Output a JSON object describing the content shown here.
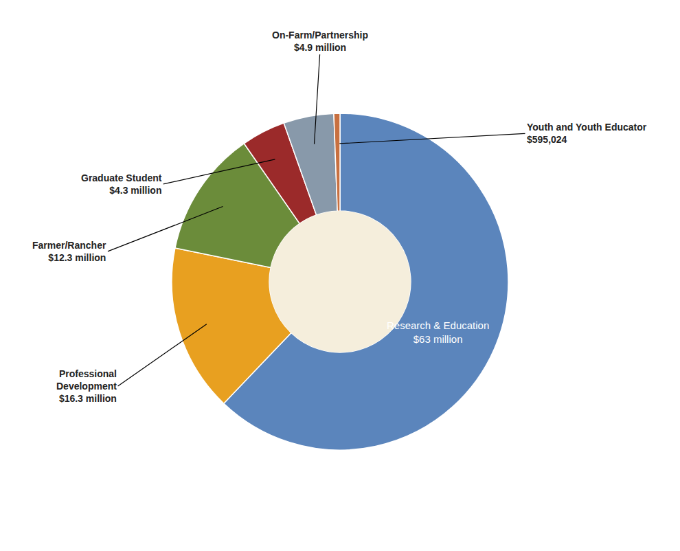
{
  "chart_data": {
    "type": "donut",
    "categories": [
      "Research & Education\n$63 million",
      "Professional\nDevelopment\n$16.3 million",
      "Farmer/Rancher\n$12.3 million",
      "Graduate Student\n$4.3 million",
      "On-Farm/Partnership\n$4.9 million",
      "Youth and Youth Educator\n$595,024"
    ],
    "values": [
      63.0,
      16.3,
      12.3,
      4.3,
      4.9,
      0.595
    ],
    "colors": [
      "#5b85bc",
      "#e8a020",
      "#6b8c3a",
      "#9b2a2a",
      "#8899aa",
      "#c87040"
    ]
  }
}
